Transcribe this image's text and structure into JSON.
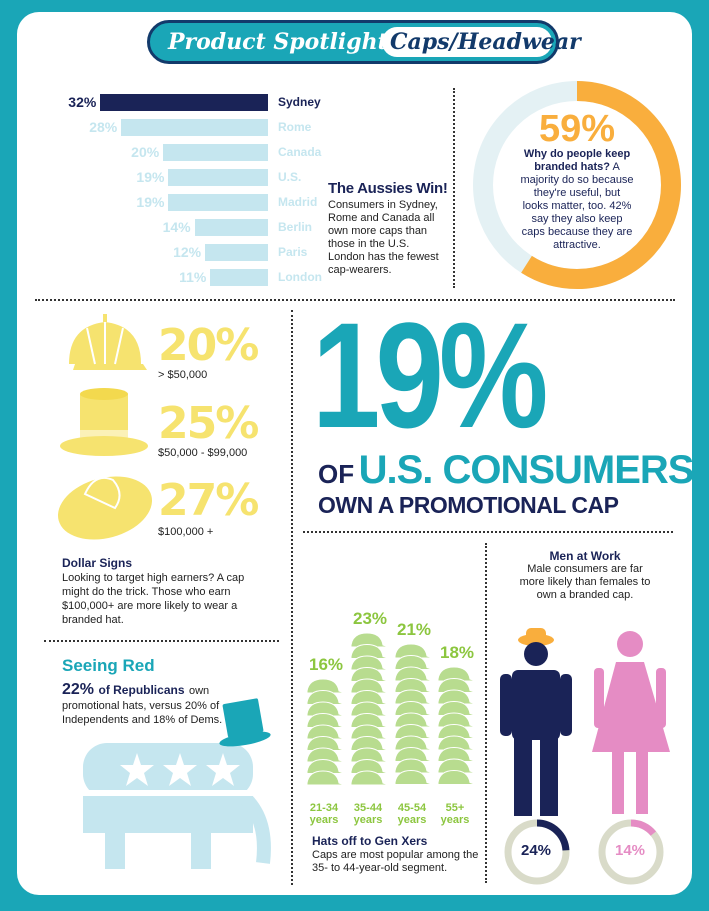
{
  "banner": {
    "title_a": "Product Spotlight:",
    "title_b": "Caps/Headwear"
  },
  "chart_data": [
    {
      "type": "bar",
      "categories": [
        "Sydney",
        "Rome",
        "Canada",
        "U.S.",
        "Madrid",
        "Berlin",
        "Paris",
        "London"
      ],
      "values": [
        32,
        28,
        20,
        19,
        19,
        14,
        12,
        11
      ],
      "value_labels": [
        "32%",
        "28%",
        "20%",
        "19%",
        "19%",
        "14%",
        "12%",
        "11%"
      ]
    },
    {
      "type": "bar",
      "categories": [
        "21-34 years",
        "35-44 years",
        "45-54 years",
        "55+ years"
      ],
      "values": [
        16,
        23,
        21,
        18
      ],
      "value_labels": [
        "16%",
        "23%",
        "21%",
        "18%"
      ]
    },
    {
      "type": "pie",
      "categories": [
        "Male",
        "Female"
      ],
      "values": [
        24,
        14
      ],
      "value_labels": [
        "24%",
        "14%"
      ]
    }
  ],
  "aussies": {
    "title": "The Aussies Win!",
    "lines": [
      "Consumers in Sydney,",
      "Rome and Canada all",
      "own more caps than",
      "those in the U.S.",
      "London has the fewest",
      "cap-wearers."
    ]
  },
  "donut": {
    "value": 59,
    "pct": "59%",
    "q1": "Why do people keep",
    "q2": "branded hats?",
    "q3": "A",
    "lines": [
      "majority do so because",
      "they're useful, but",
      "looks matter, too. 42%",
      "say they also keep",
      "caps because they are",
      "attractive."
    ],
    "colors": {
      "fill": "#f9ae3d",
      "track": "#e4f1f4"
    }
  },
  "income": [
    {
      "pct": "20%",
      "label": "> $50,000"
    },
    {
      "pct": "25%",
      "label": "$50,000 - $99,000"
    },
    {
      "pct": "27%",
      "label": "$100,000 +"
    }
  ],
  "dollar": {
    "title": "Dollar Signs",
    "lines": [
      "Looking to target high earners? A cap",
      "might do the trick. Those who earn",
      "$100,000+ are more likely to wear a",
      "branded hat."
    ]
  },
  "hero": {
    "pct": "19%",
    "line1_of": "OF",
    "line1_rest": "U.S. CONSUMERS",
    "line2": "OWN A PROMOTIONAL CAP"
  },
  "red": {
    "title": "Seeing Red",
    "lead_pct": "22%",
    "lead_rest": "of Republicans",
    "lead_tail": "own",
    "lines": [
      "promotional hats, versus 20% of",
      "Independents and 18% of Dems."
    ]
  },
  "gen": {
    "title": "Hats off to Gen Xers",
    "lines": [
      "Caps are most popular among the",
      "35- to 44-year-old segment."
    ],
    "age_lines": [
      [
        "21-34",
        "years"
      ],
      [
        "35-44",
        "years"
      ],
      [
        "45-54",
        "years"
      ],
      [
        "55+",
        "years"
      ]
    ]
  },
  "men": {
    "title": "Men at Work",
    "lines": [
      "Male consumers are far",
      "more likely than females to",
      "own a branded cap."
    ]
  },
  "colors": {
    "teal": "#1aa6b7",
    "navy": "#1a2357",
    "light_blue": "#c5e6ef",
    "yellow": "#f6e36f",
    "green": "#b8dc8f",
    "pink": "#e58cc4",
    "orange": "#f9ae3d"
  }
}
